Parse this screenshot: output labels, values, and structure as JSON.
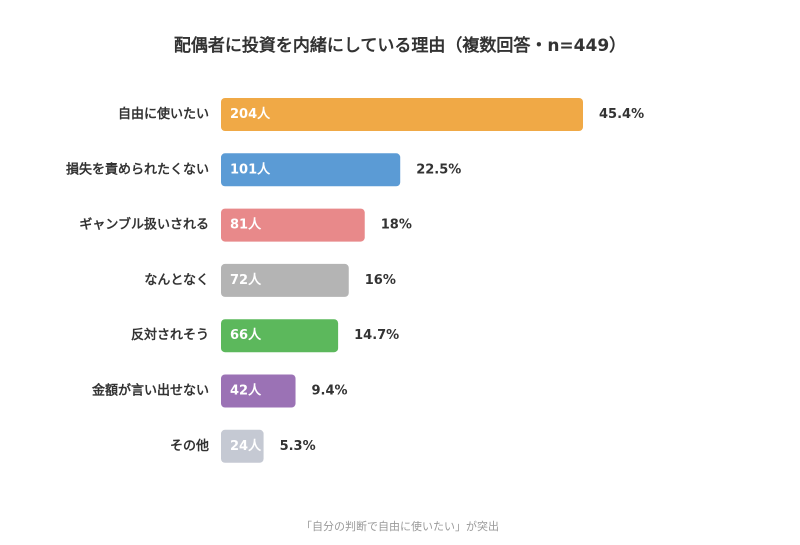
{
  "chart_data": {
    "type": "bar",
    "orientation": "horizontal",
    "title": "配偶者に投資を内緒にしている理由（複数回答・n=449）",
    "categories": [
      "自由に使いたい",
      "損失を責められたくない",
      "ギャンブル扱いされる",
      "なんとなく",
      "反対されそう",
      "金額が言い出せない",
      "その他"
    ],
    "values": [
      204,
      101,
      81,
      72,
      66,
      42,
      24
    ],
    "value_labels": [
      "204人",
      "101人",
      "81人",
      "72人",
      "66人",
      "42人",
      "24人"
    ],
    "percent_labels": [
      "45.4%",
      "22.5%",
      "18%",
      "16%",
      "14.7%",
      "9.4%",
      "5.3%"
    ],
    "colors": [
      "#f0a946",
      "#5b9bd5",
      "#e8898a",
      "#b4b4b4",
      "#5cb85c",
      "#9b72b5",
      "#c5c9d3"
    ],
    "grid": false,
    "legend": "none"
  },
  "footnote": "「自分の判断で自由に使いたい」が突出"
}
